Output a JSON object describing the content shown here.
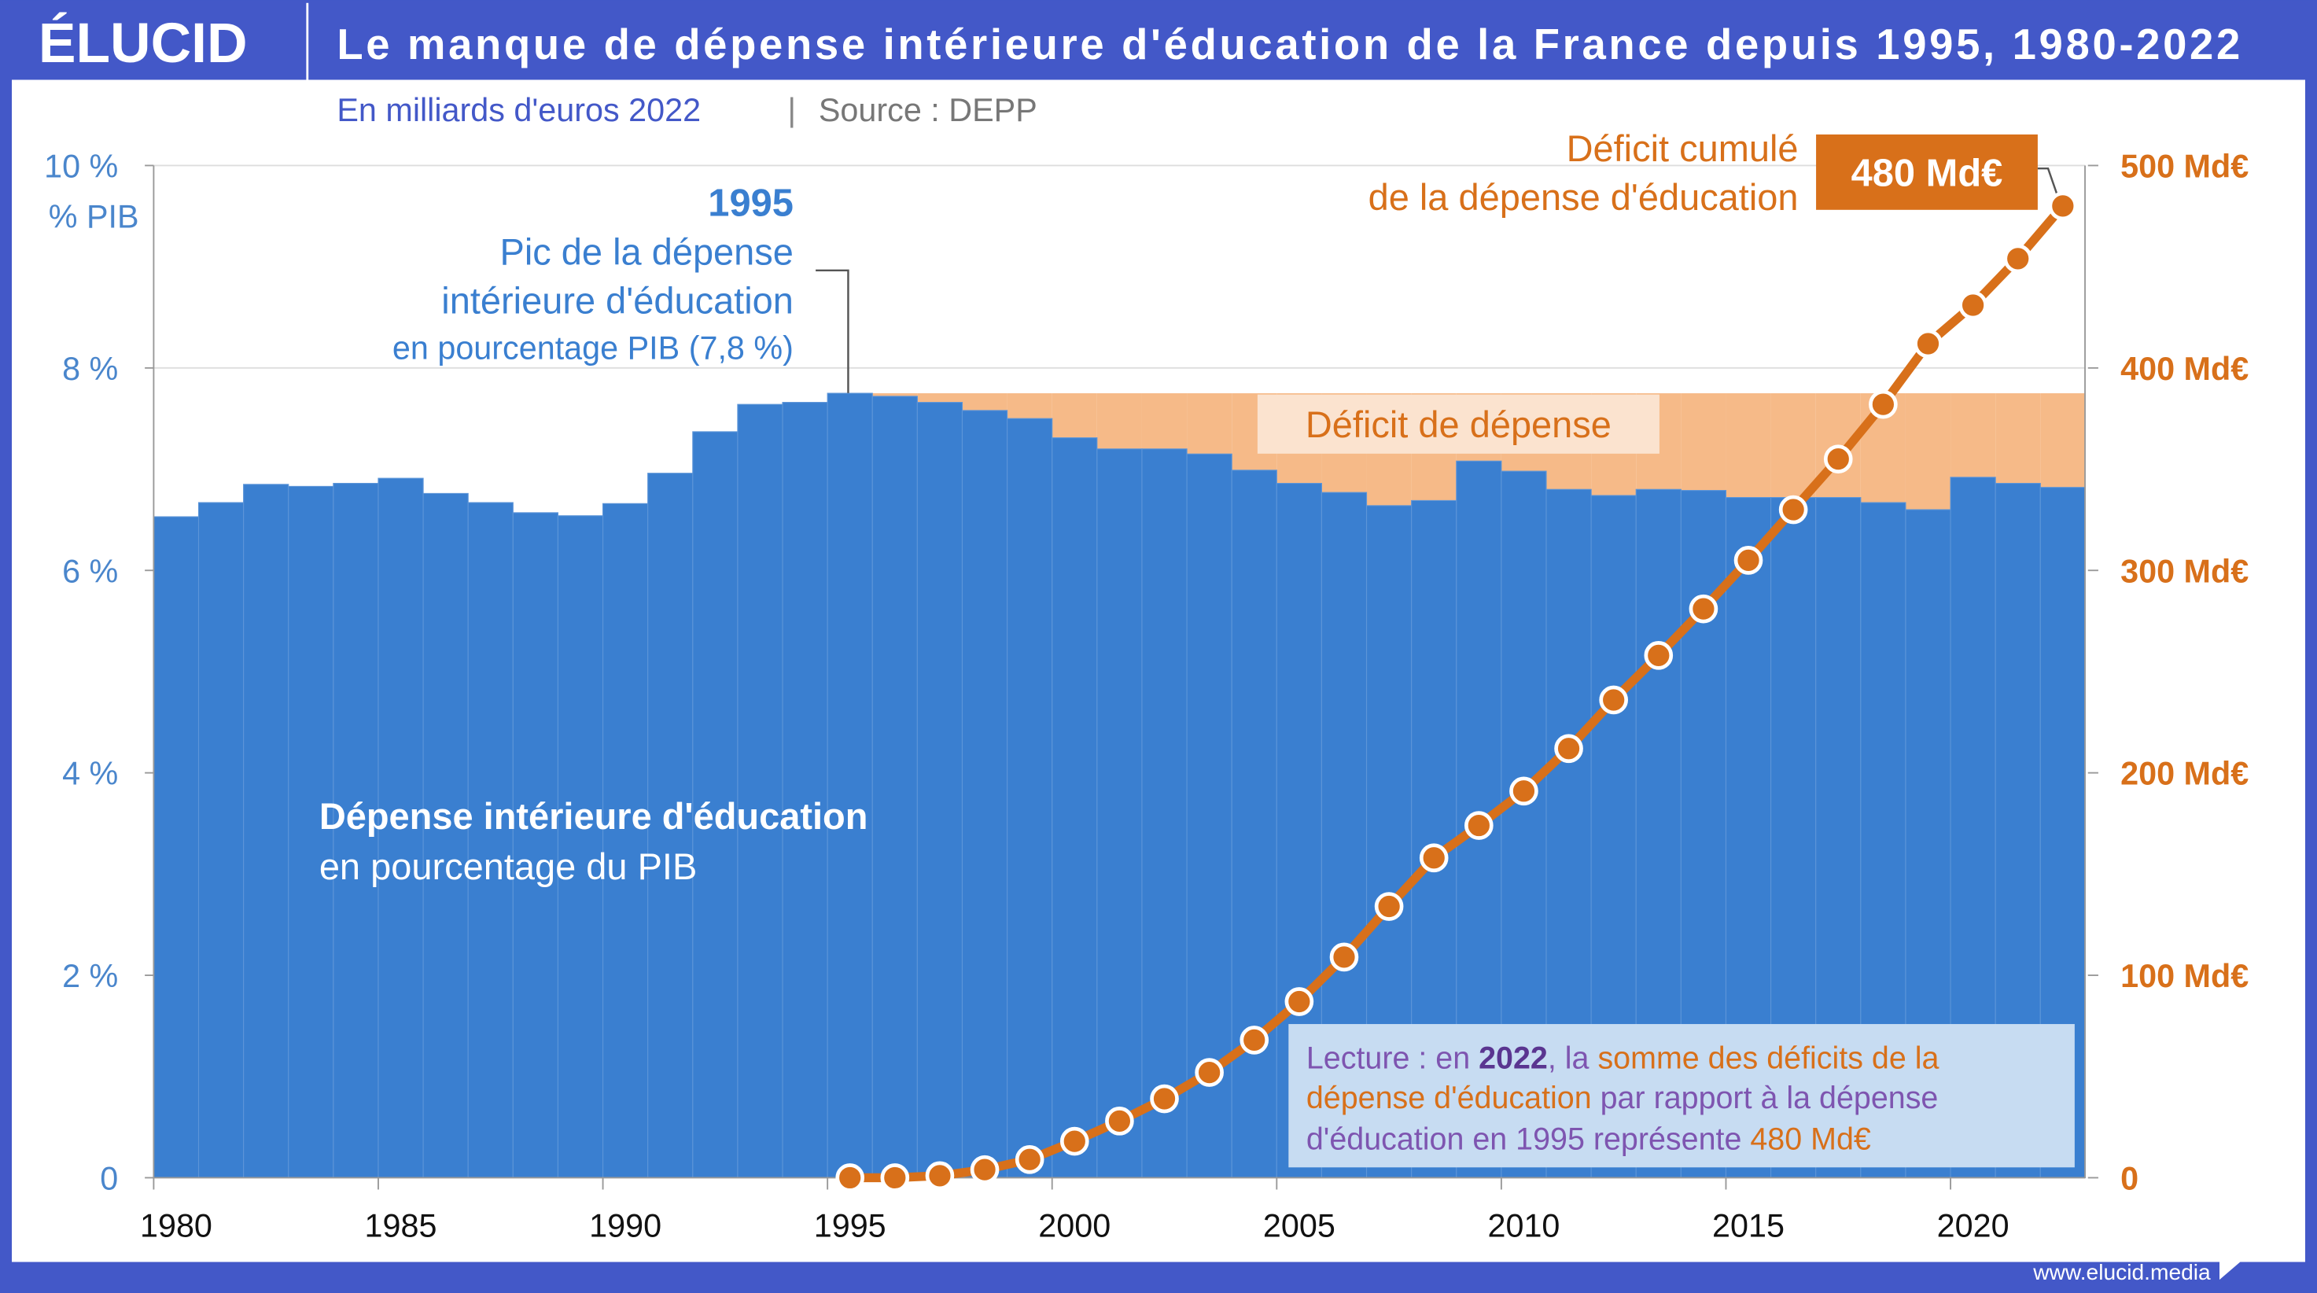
{
  "header": {
    "logo": "ÉLUCID",
    "title": "Le manque de dépense intérieure d'éducation de la France depuis 1995, 1980-2022"
  },
  "subtitle": {
    "unit": "En milliards d'euros 2022",
    "separator": "|",
    "source": "Source : DEPP"
  },
  "footer": {
    "url": "www.elucid.media"
  },
  "colors": {
    "header": "#4358c8",
    "bars": "#3a7fd0",
    "deficit_area": "#f6ba88",
    "line": "#d8701a",
    "left_axis": "#4a86cc",
    "reading_box": "#c7dcf2",
    "purple": "#7e55b0"
  },
  "annotations": {
    "peak_year": "1995",
    "peak_line1": "Pic de la dépense",
    "peak_line2": "intérieure d'éducation",
    "peak_line3": "en pourcentage PIB (7,8 %)",
    "cumul_line1": "Déficit cumulé",
    "cumul_line2": "de la dépense d'éducation",
    "cumul_badge": "480 Md€",
    "deficit_label": "Déficit de dépense",
    "bars_label1": "Dépense intérieure d'éducation",
    "bars_label2": "en pourcentage du PIB",
    "reading": {
      "p1": "Lecture : en ",
      "p2": "2022",
      "p3": ", la ",
      "p4": "somme des déficits de la",
      "p5": "dépense d'éducation",
      "p6": " par rapport à la dépense",
      "p7": "d'éducation en ",
      "p8": "1995",
      "p9": " représente ",
      "p10": "480 Md€"
    }
  },
  "chart_data": {
    "type": "bar+line",
    "left_axis": {
      "label": "% PIB",
      "ticks": [
        "0",
        "2 %",
        "4 %",
        "6 %",
        "8 %",
        "10 %"
      ],
      "range": [
        0,
        10
      ]
    },
    "right_axis": {
      "ticks": [
        "0",
        "100 Md€",
        "200 Md€",
        "300 Md€",
        "400 Md€",
        "500 Md€"
      ],
      "range": [
        0,
        500
      ]
    },
    "x_ticks": [
      "1980",
      "1985",
      "1990",
      "1995",
      "2000",
      "2005",
      "2010",
      "2015",
      "2020"
    ],
    "years": [
      1980,
      1981,
      1982,
      1983,
      1984,
      1985,
      1986,
      1987,
      1988,
      1989,
      1990,
      1991,
      1992,
      1993,
      1994,
      1995,
      1996,
      1997,
      1998,
      1999,
      2000,
      2001,
      2002,
      2003,
      2004,
      2005,
      2006,
      2007,
      2008,
      2009,
      2010,
      2011,
      2012,
      2013,
      2014,
      2015,
      2016,
      2017,
      2018,
      2019,
      2020,
      2021,
      2022
    ],
    "spending_pct_gdp": [
      6.53,
      6.67,
      6.85,
      6.83,
      6.86,
      6.91,
      6.76,
      6.67,
      6.57,
      6.54,
      6.66,
      6.96,
      7.37,
      7.64,
      7.66,
      7.75,
      7.72,
      7.66,
      7.58,
      7.5,
      7.31,
      7.2,
      7.2,
      7.15,
      6.99,
      6.86,
      6.77,
      6.64,
      6.69,
      7.08,
      6.98,
      6.8,
      6.74,
      6.8,
      6.79,
      6.72,
      6.72,
      6.72,
      6.67,
      6.6,
      6.92,
      6.86,
      6.82
    ],
    "reference_level_pct": 7.75,
    "cumulative_deficit": {
      "years": [
        1995,
        1996,
        1997,
        1998,
        1999,
        2000,
        2001,
        2002,
        2003,
        2004,
        2005,
        2006,
        2007,
        2008,
        2009,
        2010,
        2011,
        2012,
        2013,
        2014,
        2015,
        2016,
        2017,
        2018,
        2019,
        2020,
        2021,
        2022
      ],
      "values": [
        0,
        0,
        1,
        4,
        9,
        18,
        28,
        39,
        52,
        68,
        87,
        109,
        134,
        158,
        174,
        191,
        212,
        236,
        258,
        281,
        305,
        330,
        355,
        382,
        412,
        431,
        454,
        480
      ]
    }
  }
}
